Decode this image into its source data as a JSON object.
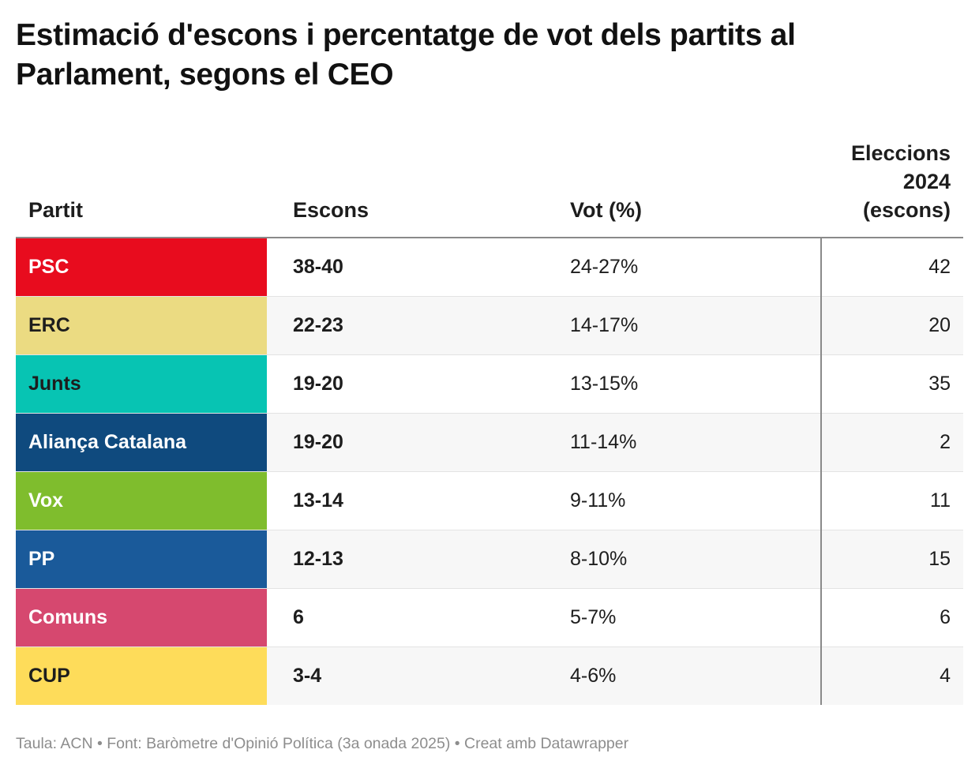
{
  "title": "Estimació d'escons i percentatge de vot dels partits al Parlament, segons el CEO",
  "chart_data": {
    "type": "table",
    "columns": [
      "Partit",
      "Escons",
      "Vot (%)",
      "Eleccions 2024 (escons)"
    ],
    "rows": [
      {
        "party": "PSC",
        "seats": "38-40",
        "vote": "24-27%",
        "seats_2024": "42",
        "color": "#e80c1e",
        "text_color": "#ffffff"
      },
      {
        "party": "ERC",
        "seats": "22-23",
        "vote": "14-17%",
        "seats_2024": "20",
        "color": "#ebdb82",
        "text_color": "#1d1d1d"
      },
      {
        "party": "Junts",
        "seats": "19-20",
        "vote": "13-15%",
        "seats_2024": "35",
        "color": "#07c4b3",
        "text_color": "#1d1d1d"
      },
      {
        "party": "Aliança Catalana",
        "seats": "19-20",
        "vote": "11-14%",
        "seats_2024": "2",
        "color": "#0f4a7e",
        "text_color": "#ffffff"
      },
      {
        "party": "Vox",
        "seats": "13-14",
        "vote": "9-11%",
        "seats_2024": "11",
        "color": "#7fbd2d",
        "text_color": "#ffffff"
      },
      {
        "party": "PP",
        "seats": "12-13",
        "vote": "8-10%",
        "seats_2024": "15",
        "color": "#1a5a9a",
        "text_color": "#ffffff"
      },
      {
        "party": "Comuns",
        "seats": "6",
        "vote": "5-7%",
        "seats_2024": "6",
        "color": "#d6486f",
        "text_color": "#ffffff"
      },
      {
        "party": "CUP",
        "seats": "3-4",
        "vote": "4-6%",
        "seats_2024": "4",
        "color": "#fedc5a",
        "text_color": "#1d1d1d"
      }
    ]
  },
  "footer": "Taula: ACN • Font: Baròmetre d'Opinió Política (3a onada 2025)  • Creat amb Datawrapper"
}
